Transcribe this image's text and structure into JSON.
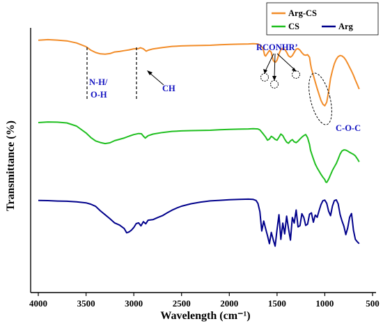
{
  "chart_data": {
    "type": "line",
    "xlabel": "Wavelength (cm⁻¹)",
    "ylabel": "Transmittance (%)",
    "xlim": [
      4050,
      500
    ],
    "x_reversed": true,
    "x_ticks": [
      4000,
      3500,
      3000,
      2500,
      2000,
      1500,
      1000,
      500
    ],
    "y_ticks": "none",
    "grid": false,
    "legend_placement": "top-right",
    "series": [
      {
        "name": "Arg-CS",
        "color": "#F28C28",
        "x": [
          4000,
          3900,
          3800,
          3700,
          3600,
          3500,
          3450,
          3400,
          3350,
          3300,
          3250,
          3200,
          3150,
          3100,
          3050,
          3000,
          2950,
          2930,
          2900,
          2870,
          2850,
          2800,
          2700,
          2600,
          2500,
          2400,
          2300,
          2200,
          2100,
          2000,
          1900,
          1800,
          1750,
          1700,
          1680,
          1650,
          1640,
          1630,
          1620,
          1600,
          1580,
          1560,
          1550,
          1540,
          1530,
          1515,
          1500,
          1480,
          1460,
          1440,
          1420,
          1400,
          1380,
          1360,
          1340,
          1320,
          1300,
          1280,
          1260,
          1240,
          1220,
          1200,
          1180,
          1160,
          1150,
          1140,
          1120,
          1100,
          1080,
          1060,
          1040,
          1020,
          1000,
          980,
          960,
          940,
          920,
          900,
          880,
          860,
          840,
          820,
          800,
          780,
          760,
          740,
          720,
          700,
          680,
          660,
          640
        ],
        "y": [
          95.3,
          95.5,
          95.3,
          95.0,
          94.2,
          92.8,
          91.5,
          90.6,
          90.1,
          90.0,
          90.2,
          90.8,
          91.0,
          91.3,
          91.6,
          92.0,
          92.1,
          92.4,
          92.0,
          91.1,
          91.5,
          92.0,
          92.5,
          92.9,
          93.1,
          93.2,
          93.3,
          93.4,
          93.6,
          93.8,
          93.9,
          94.0,
          94.1,
          94.0,
          93.5,
          92.5,
          91.2,
          89.7,
          89.3,
          90.3,
          91.4,
          90.7,
          89.0,
          87.6,
          87.2,
          87.0,
          87.8,
          90.2,
          91.8,
          92.4,
          92.0,
          90.9,
          89.5,
          89.0,
          89.6,
          90.8,
          92.0,
          92.2,
          91.6,
          90.6,
          89.8,
          89.6,
          89.8,
          88.8,
          86.3,
          84.5,
          82.0,
          79.5,
          77.0,
          74.8,
          72.6,
          71.2,
          70.6,
          72.0,
          76.0,
          81.0,
          84.0,
          86.5,
          88.2,
          89.2,
          89.6,
          89.4,
          88.8,
          87.8,
          86.5,
          85.0,
          83.6,
          82.0,
          80.2,
          78.5,
          76.8
        ]
      },
      {
        "name": "CS",
        "color": "#1FBF1F",
        "x": [
          4000,
          3900,
          3800,
          3700,
          3600,
          3500,
          3450,
          3400,
          3350,
          3300,
          3250,
          3200,
          3150,
          3100,
          3050,
          3000,
          2950,
          2920,
          2900,
          2880,
          2850,
          2800,
          2700,
          2600,
          2500,
          2400,
          2300,
          2200,
          2100,
          2000,
          1900,
          1800,
          1750,
          1700,
          1680,
          1650,
          1620,
          1600,
          1580,
          1560,
          1540,
          1520,
          1500,
          1480,
          1460,
          1440,
          1420,
          1400,
          1380,
          1360,
          1340,
          1320,
          1300,
          1280,
          1260,
          1240,
          1220,
          1200,
          1180,
          1160,
          1150,
          1140,
          1120,
          1100,
          1080,
          1060,
          1040,
          1020,
          1000,
          990,
          980,
          960,
          940,
          920,
          900,
          880,
          860,
          840,
          820,
          800,
          780,
          760,
          740,
          720,
          700,
          680,
          660,
          640
        ],
        "y": [
          64.2,
          64.4,
          64.3,
          64.0,
          62.8,
          60.2,
          58.5,
          57.2,
          56.6,
          56.2,
          56.5,
          57.3,
          57.8,
          58.3,
          59.0,
          59.6,
          60.0,
          59.9,
          59.0,
          58.3,
          59.2,
          59.8,
          60.4,
          60.8,
          61.0,
          61.1,
          61.2,
          61.3,
          61.5,
          61.7,
          61.8,
          61.9,
          62.0,
          61.9,
          61.5,
          60.2,
          58.8,
          57.6,
          58.0,
          59.0,
          58.5,
          57.8,
          57.5,
          58.6,
          59.8,
          59.2,
          57.9,
          56.8,
          56.4,
          57.3,
          57.8,
          57.0,
          56.7,
          57.3,
          58.1,
          58.8,
          59.4,
          59.8,
          58.6,
          56.0,
          53.8,
          52.7,
          50.5,
          48.5,
          47.0,
          45.8,
          44.6,
          43.5,
          42.6,
          41.7,
          41.6,
          42.8,
          44.5,
          46.2,
          47.5,
          48.8,
          50.5,
          52.4,
          53.6,
          54.0,
          53.9,
          53.5,
          53.0,
          52.6,
          52.2,
          51.6,
          50.5,
          49.3
        ]
      },
      {
        "name": "Arg",
        "color": "#00008B",
        "x": [
          4000,
          3900,
          3800,
          3700,
          3600,
          3500,
          3450,
          3400,
          3350,
          3300,
          3250,
          3200,
          3150,
          3100,
          3075,
          3050,
          3025,
          3000,
          2975,
          2950,
          2925,
          2900,
          2875,
          2850,
          2800,
          2750,
          2700,
          2650,
          2600,
          2550,
          2500,
          2400,
          2300,
          2200,
          2100,
          2000,
          1900,
          1800,
          1750,
          1720,
          1700,
          1680,
          1660,
          1640,
          1620,
          1600,
          1580,
          1560,
          1540,
          1520,
          1500,
          1480,
          1460,
          1440,
          1420,
          1400,
          1380,
          1360,
          1340,
          1320,
          1300,
          1280,
          1260,
          1240,
          1220,
          1200,
          1180,
          1160,
          1140,
          1120,
          1100,
          1080,
          1060,
          1040,
          1020,
          1000,
          980,
          960,
          940,
          920,
          900,
          880,
          860,
          840,
          820,
          800,
          780,
          760,
          740,
          720,
          700,
          680,
          660,
          640
        ],
        "y": [
          34.8,
          34.7,
          34.5,
          34.4,
          34.2,
          33.8,
          33.3,
          32.5,
          30.8,
          29.3,
          27.8,
          26.2,
          25.4,
          24.1,
          22.5,
          22.8,
          23.5,
          24.5,
          26.0,
          26.3,
          25.2,
          26.8,
          26.0,
          27.4,
          27.6,
          28.4,
          29.1,
          30.2,
          31.2,
          32.0,
          32.7,
          33.6,
          34.2,
          34.6,
          34.8,
          35.0,
          35.1,
          35.2,
          35.1,
          34.7,
          33.6,
          30.5,
          23.2,
          27.0,
          24.2,
          21.5,
          18.5,
          22.8,
          20.0,
          17.6,
          24.0,
          29.5,
          20.2,
          26.3,
          22.2,
          28.9,
          24.2,
          19.8,
          28.3,
          26.2,
          31.1,
          24.7,
          25.2,
          29.7,
          28.3,
          25.3,
          25.8,
          29.6,
          30.1,
          26.6,
          29.3,
          28.5,
          31.0,
          33.3,
          34.8,
          35.0,
          33.8,
          30.8,
          29.1,
          32.7,
          34.7,
          35.0,
          33.5,
          29.4,
          27.0,
          24.9,
          21.8,
          24.3,
          28.4,
          29.8,
          23.5,
          20.1,
          19.2,
          18.5
        ]
      }
    ],
    "annotations": [
      {
        "text": "N-H/",
        "color": "#1010C0"
      },
      {
        "text": "O-H",
        "color": "#1010C0"
      },
      {
        "text": "CH",
        "color": "#1010C0"
      },
      {
        "text": "RCONHR’",
        "color": "#1010C0"
      },
      {
        "text": "C-O-C",
        "color": "#1010C0"
      }
    ]
  },
  "legend": {
    "items": [
      {
        "label": "Arg-CS",
        "color": "#F28C28"
      },
      {
        "label": "CS",
        "color": "#1FBF1F"
      },
      {
        "label": "Arg",
        "color": "#00008B"
      }
    ]
  }
}
